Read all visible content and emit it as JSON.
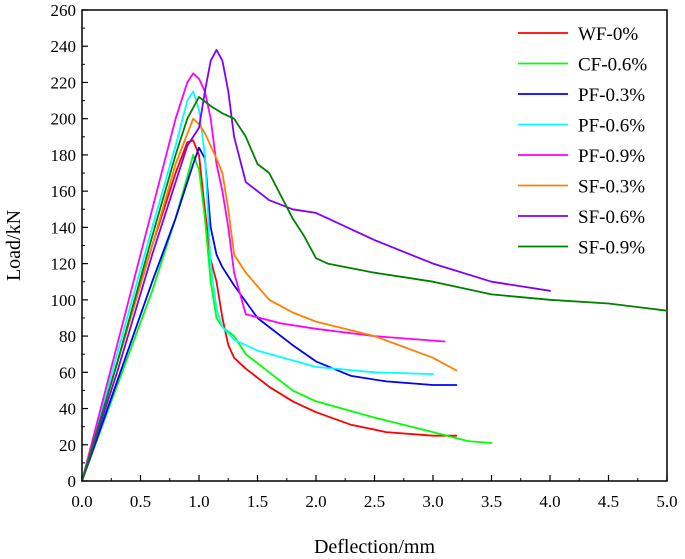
{
  "chart_data": {
    "type": "line",
    "title": "",
    "xlabel": "Deflection/mm",
    "ylabel": "Load/kN",
    "xlim": [
      0,
      5
    ],
    "ylim": [
      0,
      260
    ],
    "xticks": [
      0,
      0.5,
      1,
      1.5,
      2,
      2.5,
      3,
      3.5,
      4,
      4.5,
      5
    ],
    "xtick_labels": [
      "0.0",
      "0.5",
      "1.0",
      "1.5",
      "2.0",
      "2.5",
      "3.0",
      "3.5",
      "4.0",
      "4.5",
      "5.0"
    ],
    "yticks": [
      0,
      20,
      40,
      60,
      80,
      100,
      120,
      140,
      160,
      180,
      200,
      220,
      240,
      260
    ],
    "ytick_labels": [
      "0",
      "20",
      "40",
      "60",
      "80",
      "100",
      "120",
      "140",
      "160",
      "180",
      "200",
      "220",
      "240",
      "260"
    ],
    "grid": false,
    "legend_position": "top-right",
    "series": [
      {
        "name": "WF-0%",
        "color": "#ff0000",
        "x": [
          0,
          0.3,
          0.6,
          0.8,
          0.9,
          0.95,
          1.0,
          1.05,
          1.1,
          1.15,
          1.2,
          1.25,
          1.3,
          1.4,
          1.6,
          1.8,
          2.0,
          2.3,
          2.6,
          3.0,
          3.2
        ],
        "y": [
          0,
          65,
          130,
          170,
          187,
          188,
          180,
          150,
          122,
          110,
          90,
          75,
          68,
          62,
          52,
          44,
          38,
          31,
          27,
          25,
          25
        ]
      },
      {
        "name": "CF-0.6%",
        "color": "#00ff00",
        "x": [
          0,
          0.2,
          0.4,
          0.6,
          0.8,
          0.9,
          0.95,
          1.0,
          1.05,
          1.1,
          1.15,
          1.2,
          1.3,
          1.4,
          1.6,
          1.8,
          2.0,
          2.5,
          3.0,
          3.3,
          3.5
        ],
        "y": [
          0,
          35,
          70,
          105,
          145,
          168,
          180,
          172,
          145,
          110,
          90,
          85,
          80,
          70,
          60,
          50,
          44,
          35,
          27,
          22,
          21
        ]
      },
      {
        "name": "PF-0.3%",
        "color": "#0000ff",
        "x": [
          0,
          0.3,
          0.6,
          0.8,
          0.95,
          1.0,
          1.05,
          1.1,
          1.15,
          1.2,
          1.3,
          1.5,
          1.8,
          2.0,
          2.3,
          2.6,
          3.0,
          3.2
        ],
        "y": [
          0,
          55,
          110,
          145,
          175,
          184,
          178,
          140,
          125,
          118,
          108,
          90,
          75,
          66,
          58,
          55,
          53,
          53
        ]
      },
      {
        "name": "PF-0.6%",
        "color": "#00ffff",
        "x": [
          0,
          0.3,
          0.6,
          0.8,
          0.9,
          0.95,
          1.0,
          1.05,
          1.1,
          1.15,
          1.2,
          1.3,
          1.5,
          2.0,
          2.5,
          3.0
        ],
        "y": [
          0,
          70,
          140,
          185,
          210,
          215,
          205,
          180,
          120,
          95,
          85,
          78,
          72,
          63,
          60,
          59
        ]
      },
      {
        "name": "PF-0.9%",
        "color": "#ff00ff",
        "x": [
          0,
          0.3,
          0.6,
          0.8,
          0.9,
          0.95,
          1.0,
          1.05,
          1.1,
          1.15,
          1.2,
          1.25,
          1.3,
          1.4,
          1.7,
          2.0,
          2.5,
          3.1
        ],
        "y": [
          0,
          75,
          150,
          200,
          220,
          225,
          222,
          215,
          200,
          175,
          160,
          140,
          115,
          92,
          87,
          84,
          80,
          77
        ]
      },
      {
        "name": "SF-0.3%",
        "color": "#ff8000",
        "x": [
          0,
          0.3,
          0.6,
          0.8,
          0.95,
          1.0,
          1.05,
          1.1,
          1.15,
          1.2,
          1.25,
          1.3,
          1.4,
          1.6,
          1.8,
          2.0,
          2.5,
          3.0,
          3.2
        ],
        "y": [
          0,
          65,
          130,
          175,
          200,
          197,
          192,
          185,
          178,
          170,
          150,
          125,
          115,
          100,
          93,
          88,
          80,
          68,
          61
        ]
      },
      {
        "name": "SF-0.6%",
        "color": "#8000ff",
        "x": [
          0,
          0.3,
          0.6,
          0.8,
          0.9,
          1.0,
          1.05,
          1.1,
          1.15,
          1.2,
          1.25,
          1.3,
          1.4,
          1.6,
          1.8,
          2.0,
          2.5,
          3.0,
          3.5,
          4.0
        ],
        "y": [
          0,
          60,
          125,
          165,
          185,
          195,
          215,
          232,
          238,
          232,
          215,
          190,
          165,
          155,
          150,
          148,
          133,
          120,
          110,
          105
        ]
      },
      {
        "name": "SF-0.9%",
        "color": "#008000",
        "x": [
          0,
          0.3,
          0.6,
          0.8,
          0.9,
          1.0,
          1.1,
          1.2,
          1.3,
          1.4,
          1.5,
          1.6,
          1.8,
          1.9,
          2.0,
          2.1,
          2.5,
          3.0,
          3.5,
          4.0,
          4.5,
          5.0
        ],
        "y": [
          0,
          65,
          135,
          180,
          200,
          212,
          207,
          203,
          200,
          190,
          175,
          170,
          145,
          135,
          123,
          120,
          115,
          110,
          103,
          100,
          98,
          94
        ]
      }
    ]
  }
}
